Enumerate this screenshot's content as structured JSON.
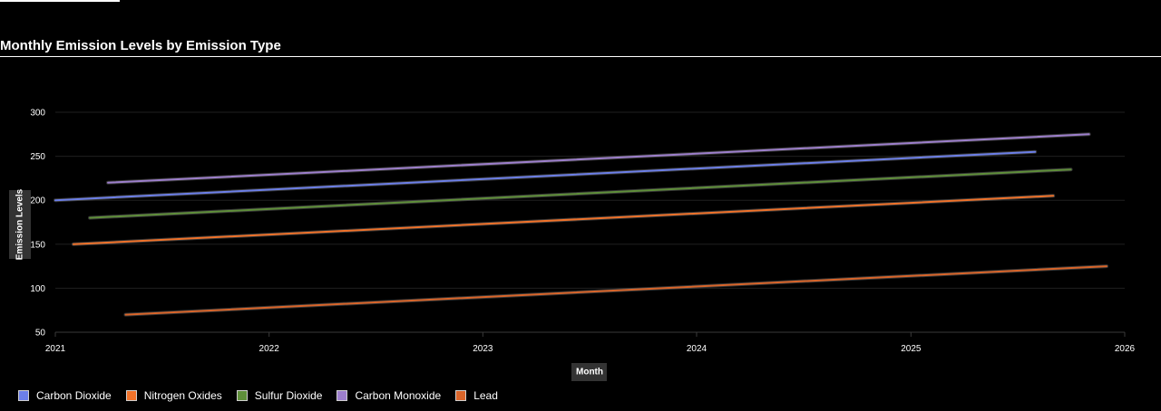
{
  "chart_data": {
    "type": "line",
    "title": "Monthly Emission Levels by Emission Type",
    "xlabel": "Month",
    "ylabel": "Emission Levels",
    "xlim": [
      "2021-01-01",
      "2026-01-01"
    ],
    "ylim": [
      50,
      300
    ],
    "x_ticks": [
      "2021",
      "2022",
      "2023",
      "2024",
      "2025",
      "2026"
    ],
    "y_ticks": [
      50,
      100,
      150,
      200,
      250,
      300
    ],
    "grid": true,
    "legend_position": "bottom-left",
    "series": [
      {
        "name": "Carbon Dioxide",
        "color": "#6c7fe8",
        "x": [
          "2021-01-01",
          "2025-08-01"
        ],
        "y": [
          200,
          255
        ]
      },
      {
        "name": "Nitrogen Oxides",
        "color": "#f0722a",
        "x": [
          "2021-02-01",
          "2025-09-01"
        ],
        "y": [
          150,
          205
        ]
      },
      {
        "name": "Sulfur Dioxide",
        "color": "#5f8f3a",
        "x": [
          "2021-03-01",
          "2025-10-01"
        ],
        "y": [
          180,
          235
        ]
      },
      {
        "name": "Carbon Monoxide",
        "color": "#9d7fcc",
        "x": [
          "2021-04-01",
          "2025-11-01"
        ],
        "y": [
          220,
          275
        ]
      },
      {
        "name": "Lead",
        "color": "#d9652a",
        "x": [
          "2021-05-01",
          "2025-12-01"
        ],
        "y": [
          70,
          125
        ]
      }
    ]
  }
}
